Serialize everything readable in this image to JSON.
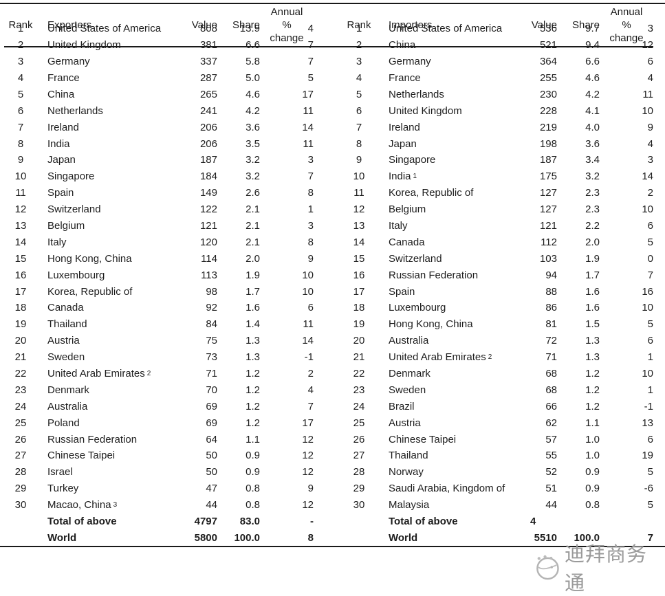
{
  "left_header": {
    "rank": "Rank",
    "entity": "Exporters",
    "value": "Value",
    "share": "Share",
    "annual": [
      "Annual",
      "%",
      "change"
    ]
  },
  "right_header": {
    "rank": "Rank",
    "entity": "Importers",
    "value": "Value",
    "share": "Share",
    "annual": [
      "Annual",
      "%",
      "change"
    ]
  },
  "left_table": {
    "rows": [
      {
        "rank": "1",
        "name": "United States of America",
        "sup": "",
        "value": "808",
        "share": "13.9",
        "change": "4"
      },
      {
        "rank": "2",
        "name": "United Kingdom",
        "sup": "",
        "value": "381",
        "share": "6.6",
        "change": "7"
      },
      {
        "rank": "3",
        "name": "Germany",
        "sup": "",
        "value": "337",
        "share": "5.8",
        "change": "7"
      },
      {
        "rank": "4",
        "name": "France",
        "sup": "",
        "value": "287",
        "share": "5.0",
        "change": "5"
      },
      {
        "rank": "5",
        "name": "China",
        "sup": "",
        "value": "265",
        "share": "4.6",
        "change": "17"
      },
      {
        "rank": "6",
        "name": "Netherlands",
        "sup": "",
        "value": "241",
        "share": "4.2",
        "change": "11"
      },
      {
        "rank": "7",
        "name": "Ireland",
        "sup": "",
        "value": "206",
        "share": "3.6",
        "change": "14"
      },
      {
        "rank": "8",
        "name": "India",
        "sup": "",
        "value": "206",
        "share": "3.5",
        "change": "11"
      },
      {
        "rank": "9",
        "name": "Japan",
        "sup": "",
        "value": "187",
        "share": "3.2",
        "change": "3"
      },
      {
        "rank": "10",
        "name": "Singapore",
        "sup": "",
        "value": "184",
        "share": "3.2",
        "change": "7"
      },
      {
        "rank": "11",
        "name": "Spain",
        "sup": "",
        "value": "149",
        "share": "2.6",
        "change": "8"
      },
      {
        "rank": "12",
        "name": "Switzerland",
        "sup": "",
        "value": "122",
        "share": "2.1",
        "change": "1"
      },
      {
        "rank": "13",
        "name": "Belgium",
        "sup": "",
        "value": "121",
        "share": "2.1",
        "change": "3"
      },
      {
        "rank": "14",
        "name": "Italy",
        "sup": "",
        "value": "120",
        "share": "2.1",
        "change": "8"
      },
      {
        "rank": "15",
        "name": "Hong Kong, China",
        "sup": "",
        "value": "114",
        "share": "2.0",
        "change": "9"
      },
      {
        "rank": "16",
        "name": "Luxembourg",
        "sup": "",
        "value": "113",
        "share": "1.9",
        "change": "10"
      },
      {
        "rank": "17",
        "name": "Korea, Republic of",
        "sup": "",
        "value": "98",
        "share": "1.7",
        "change": "10"
      },
      {
        "rank": "18",
        "name": "Canada",
        "sup": "",
        "value": "92",
        "share": "1.6",
        "change": "6"
      },
      {
        "rank": "19",
        "name": "Thailand",
        "sup": "",
        "value": "84",
        "share": "1.4",
        "change": "11"
      },
      {
        "rank": "20",
        "name": "Austria",
        "sup": "",
        "value": "75",
        "share": "1.3",
        "change": "14"
      },
      {
        "rank": "21",
        "name": "Sweden",
        "sup": "",
        "value": "73",
        "share": "1.3",
        "change": "-1"
      },
      {
        "rank": "22",
        "name": "United Arab Emirates",
        "sup": "2",
        "value": "71",
        "share": "1.2",
        "change": "2"
      },
      {
        "rank": "23",
        "name": "Denmark",
        "sup": "",
        "value": "70",
        "share": "1.2",
        "change": "4"
      },
      {
        "rank": "24",
        "name": "Australia",
        "sup": "",
        "value": "69",
        "share": "1.2",
        "change": "7"
      },
      {
        "rank": "25",
        "name": "Poland",
        "sup": "",
        "value": "69",
        "share": "1.2",
        "change": "17"
      },
      {
        "rank": "26",
        "name": "Russian Federation",
        "sup": "",
        "value": "64",
        "share": "1.1",
        "change": "12"
      },
      {
        "rank": "27",
        "name": "Chinese Taipei",
        "sup": "",
        "value": "50",
        "share": "0.9",
        "change": "12"
      },
      {
        "rank": "28",
        "name": "Israel",
        "sup": "",
        "value": "50",
        "share": "0.9",
        "change": "12"
      },
      {
        "rank": "29",
        "name": "Turkey",
        "sup": "",
        "value": "47",
        "share": "0.8",
        "change": "9"
      },
      {
        "rank": "30",
        "name": "Macao, China",
        "sup": "3",
        "value": "44",
        "share": "0.8",
        "change": "12"
      }
    ],
    "totals": [
      {
        "name": "Total of above",
        "value": "4797",
        "share": "83.0",
        "change": "-",
        "obscured": false
      },
      {
        "name": "World",
        "value": "5800",
        "share": "100.0",
        "change": "8",
        "obscured": false
      }
    ]
  },
  "right_table": {
    "rows": [
      {
        "rank": "1",
        "name": "United States of America",
        "sup": "",
        "value": "536",
        "share": "9.7",
        "change": "3"
      },
      {
        "rank": "2",
        "name": "China",
        "sup": "",
        "value": "521",
        "share": "9.4",
        "change": "12"
      },
      {
        "rank": "3",
        "name": "Germany",
        "sup": "",
        "value": "364",
        "share": "6.6",
        "change": "6"
      },
      {
        "rank": "4",
        "name": "France",
        "sup": "",
        "value": "255",
        "share": "4.6",
        "change": "4"
      },
      {
        "rank": "5",
        "name": "Netherlands",
        "sup": "",
        "value": "230",
        "share": "4.2",
        "change": "11"
      },
      {
        "rank": "6",
        "name": "United Kingdom",
        "sup": "",
        "value": "228",
        "share": "4.1",
        "change": "10"
      },
      {
        "rank": "7",
        "name": "Ireland",
        "sup": "",
        "value": "219",
        "share": "4.0",
        "change": "9"
      },
      {
        "rank": "8",
        "name": "Japan",
        "sup": "",
        "value": "198",
        "share": "3.6",
        "change": "4"
      },
      {
        "rank": "9",
        "name": "Singapore",
        "sup": "",
        "value": "187",
        "share": "3.4",
        "change": "3"
      },
      {
        "rank": "10",
        "name": "India",
        "sup": "1",
        "value": "175",
        "share": "3.2",
        "change": "14"
      },
      {
        "rank": "11",
        "name": "Korea, Republic of",
        "sup": "",
        "value": "127",
        "share": "2.3",
        "change": "2"
      },
      {
        "rank": "12",
        "name": "Belgium",
        "sup": "",
        "value": "127",
        "share": "2.3",
        "change": "10"
      },
      {
        "rank": "13",
        "name": "Italy",
        "sup": "",
        "value": "121",
        "share": "2.2",
        "change": "6"
      },
      {
        "rank": "14",
        "name": "Canada",
        "sup": "",
        "value": "112",
        "share": "2.0",
        "change": "5"
      },
      {
        "rank": "15",
        "name": "Switzerland",
        "sup": "",
        "value": "103",
        "share": "1.9",
        "change": "0"
      },
      {
        "rank": "16",
        "name": "Russian Federation",
        "sup": "",
        "value": "94",
        "share": "1.7",
        "change": "7"
      },
      {
        "rank": "17",
        "name": "Spain",
        "sup": "",
        "value": "88",
        "share": "1.6",
        "change": "16"
      },
      {
        "rank": "18",
        "name": "Luxembourg",
        "sup": "",
        "value": "86",
        "share": "1.6",
        "change": "10"
      },
      {
        "rank": "19",
        "name": "Hong Kong, China",
        "sup": "",
        "value": "81",
        "share": "1.5",
        "change": "5"
      },
      {
        "rank": "20",
        "name": "Australia",
        "sup": "",
        "value": "72",
        "share": "1.3",
        "change": "6"
      },
      {
        "rank": "21",
        "name": "United Arab Emirates",
        "sup": "2",
        "value": "71",
        "share": "1.3",
        "change": "1"
      },
      {
        "rank": "22",
        "name": "Denmark",
        "sup": "",
        "value": "68",
        "share": "1.2",
        "change": "10"
      },
      {
        "rank": "23",
        "name": "Sweden",
        "sup": "",
        "value": "68",
        "share": "1.2",
        "change": "1"
      },
      {
        "rank": "24",
        "name": "Brazil",
        "sup": "",
        "value": "66",
        "share": "1.2",
        "change": "-1"
      },
      {
        "rank": "25",
        "name": "Austria",
        "sup": "",
        "value": "62",
        "share": "1.1",
        "change": "13"
      },
      {
        "rank": "26",
        "name": "Chinese Taipei",
        "sup": "",
        "value": "57",
        "share": "1.0",
        "change": "6"
      },
      {
        "rank": "27",
        "name": "Thailand",
        "sup": "",
        "value": "55",
        "share": "1.0",
        "change": "19"
      },
      {
        "rank": "28",
        "name": "Norway",
        "sup": "",
        "value": "52",
        "share": "0.9",
        "change": "5"
      },
      {
        "rank": "29",
        "name": "Saudi Arabia, Kingdom of",
        "sup": "",
        "value": "51",
        "share": "0.9",
        "change": "-6"
      },
      {
        "rank": "30",
        "name": "Malaysia",
        "sup": "",
        "value": "44",
        "share": "0.8",
        "change": "5"
      }
    ],
    "totals": [
      {
        "name": "Total of above",
        "value": "4",
        "share": "",
        "change": "",
        "obscured": true
      },
      {
        "name": "World",
        "value": "5510",
        "share": "100.0",
        "change": "7",
        "obscured": false
      }
    ]
  },
  "watermark": {
    "text": "迪拜商务通",
    "icon": "globe-swoosh-icon",
    "color": "#9a9a9a"
  }
}
